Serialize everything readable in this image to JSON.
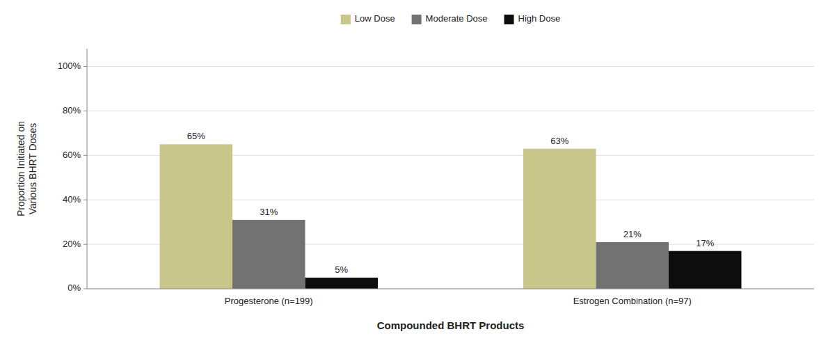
{
  "chart_data": {
    "type": "bar",
    "xlabel": "Compounded BHRT Products",
    "ylabel": "Proportion Initiated on\nVarious BHRT Doses",
    "categories": [
      "Progesterone (n=199)",
      "Estrogen Combination (n=97)"
    ],
    "series": [
      {
        "name": "Low Dose",
        "color": "#c8c68a",
        "values": [
          65,
          63
        ],
        "value_labels": [
          "65%",
          "63%"
        ]
      },
      {
        "name": "Moderate Dose",
        "color": "#727272",
        "values": [
          31,
          21
        ],
        "value_labels": [
          "31%",
          "21%"
        ]
      },
      {
        "name": "High Dose",
        "color": "#0d0d0d",
        "values": [
          5,
          17
        ],
        "value_labels": [
          "5%",
          "17%"
        ]
      }
    ],
    "ylim": [
      0,
      108
    ],
    "yticks": [
      {
        "value": 0,
        "label": "0%"
      },
      {
        "value": 20,
        "label": "20%"
      },
      {
        "value": 40,
        "label": "40%"
      },
      {
        "value": 60,
        "label": "60%"
      },
      {
        "value": 80,
        "label": "80%"
      },
      {
        "value": 100,
        "label": "100%"
      }
    ],
    "grid": true,
    "legend": "top",
    "data_labels": true
  }
}
